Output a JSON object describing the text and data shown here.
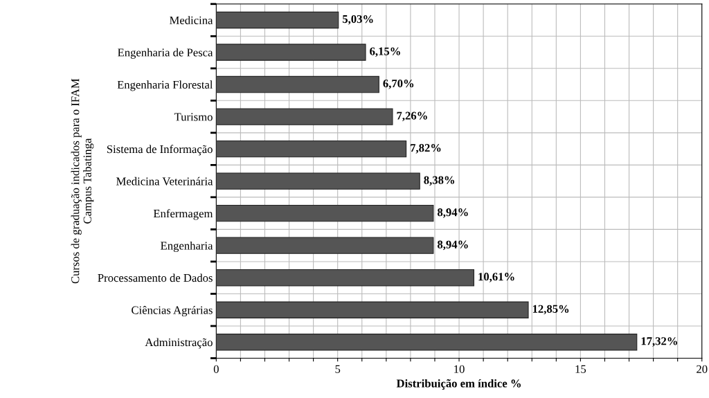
{
  "chart_data": {
    "type": "bar",
    "orientation": "horizontal",
    "xlabel": "Distribuição em índice %",
    "ylabel": "Cursos de graduação indicados para o IFAM\nCampus Tabatinga",
    "categories": [
      "Medicina",
      "Engenharia de Pesca",
      "Engenharia Florestal",
      "Turismo",
      "Sistema de Informação",
      "Medicina Veterinária",
      "Enfermagem",
      "Engenharia",
      "Processamento de Dados",
      "Ciências Agrárias",
      "Administração"
    ],
    "values": [
      5.03,
      6.15,
      6.7,
      7.26,
      7.82,
      8.38,
      8.94,
      8.94,
      10.61,
      12.85,
      17.32
    ],
    "value_labels": [
      "5,03%",
      "6,15%",
      "6,70%",
      "7,26%",
      "7,82%",
      "8,38%",
      "8,94%",
      "8,94%",
      "10,61%",
      "12,85%",
      "17,32%"
    ],
    "color": "#555555",
    "xlim": [
      0,
      20
    ],
    "xticks": [
      0,
      {
        "value": 1,
        "label": null
      },
      {
        "value": 2,
        "label": null
      },
      {
        "value": 3,
        "label": null
      },
      {
        "value": 4,
        "label": null
      },
      5,
      {
        "value": 6,
        "label": null
      },
      {
        "value": 7,
        "label": null
      },
      {
        "value": 8,
        "label": null
      },
      {
        "value": 9,
        "label": null
      },
      10,
      {
        "value": 11,
        "label": null
      },
      {
        "value": 12,
        "label": null
      },
      {
        "value": 13,
        "label": null
      },
      {
        "value": 14,
        "label": null
      },
      15,
      {
        "value": 16,
        "label": null
      },
      {
        "value": 17,
        "label": null
      },
      {
        "value": 18,
        "label": null
      },
      {
        "value": 19,
        "label": null
      },
      20
    ],
    "grid": true
  }
}
